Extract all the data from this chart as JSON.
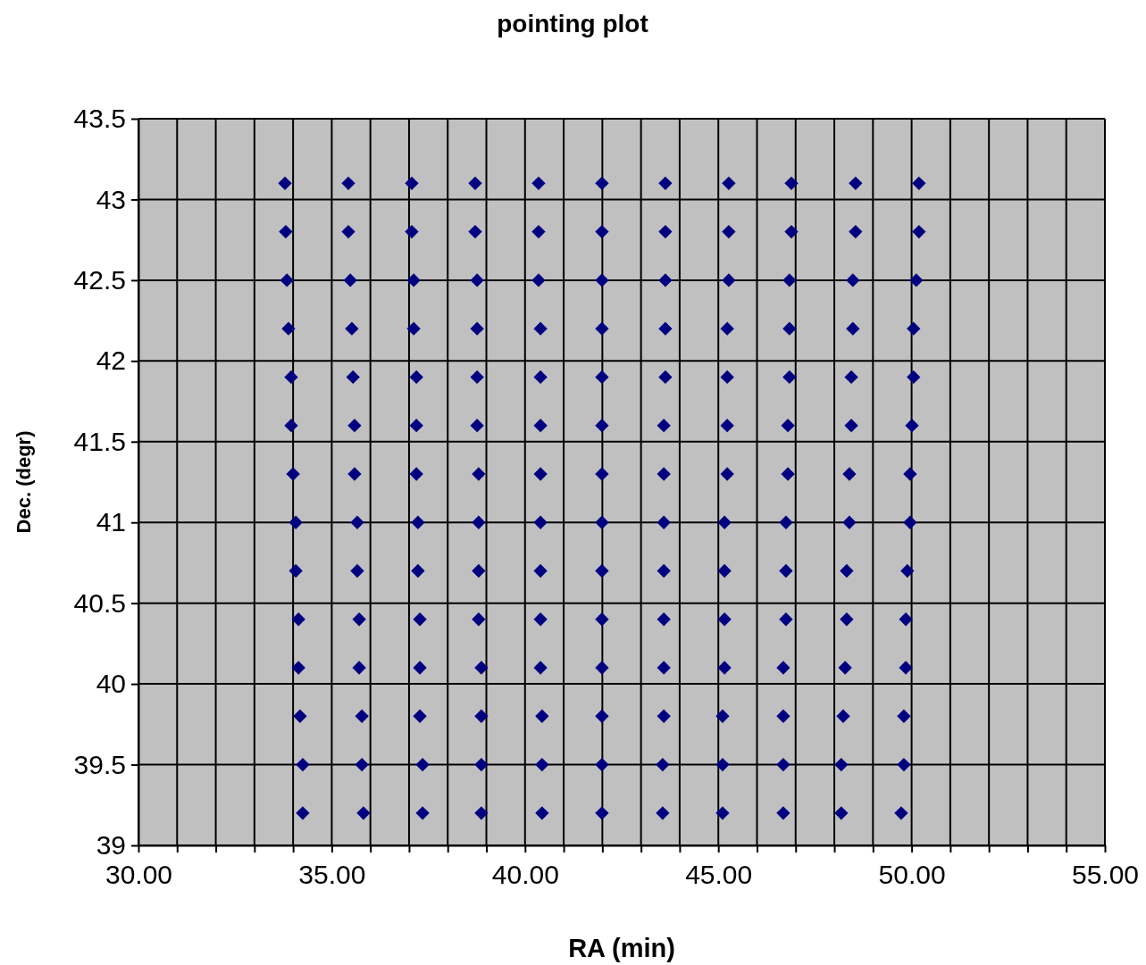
{
  "chart_data": {
    "type": "scatter",
    "title": "pointing plot",
    "xlabel": "RA (min)",
    "ylabel": "Dec. (degr)",
    "xlim": [
      30,
      55
    ],
    "ylim": [
      39,
      43.5
    ],
    "xticks": [
      {
        "value": 30,
        "label": "30.00"
      },
      {
        "value": 31,
        "label": null
      },
      {
        "value": 32,
        "label": null
      },
      {
        "value": 33,
        "label": null
      },
      {
        "value": 34,
        "label": null
      },
      {
        "value": 35,
        "label": "35.00"
      },
      {
        "value": 36,
        "label": null
      },
      {
        "value": 37,
        "label": null
      },
      {
        "value": 38,
        "label": null
      },
      {
        "value": 39,
        "label": null
      },
      {
        "value": 40,
        "label": "40.00"
      },
      {
        "value": 41,
        "label": null
      },
      {
        "value": 42,
        "label": null
      },
      {
        "value": 43,
        "label": null
      },
      {
        "value": 44,
        "label": null
      },
      {
        "value": 45,
        "label": "45.00"
      },
      {
        "value": 46,
        "label": null
      },
      {
        "value": 47,
        "label": null
      },
      {
        "value": 48,
        "label": null
      },
      {
        "value": 49,
        "label": null
      },
      {
        "value": 50,
        "label": "50.00"
      },
      {
        "value": 51,
        "label": null
      },
      {
        "value": 52,
        "label": null
      },
      {
        "value": 53,
        "label": null
      },
      {
        "value": 54,
        "label": null
      },
      {
        "value": 55,
        "label": "55.00"
      }
    ],
    "yticks": [
      39,
      39.5,
      40,
      40.5,
      41,
      41.5,
      42,
      42.5,
      43,
      43.5
    ],
    "grid": true,
    "marker": "diamond",
    "series": [
      {
        "color": "#000080",
        "x": [
          33.79,
          35.43,
          37.07,
          38.71,
          40.35,
          41.99,
          43.63,
          45.27,
          46.89,
          48.55,
          50.19,
          33.81,
          35.43,
          37.07,
          38.71,
          40.35,
          41.99,
          43.63,
          45.27,
          46.89,
          48.55,
          50.19,
          33.84,
          35.48,
          37.12,
          38.76,
          40.35,
          41.99,
          43.63,
          45.27,
          46.84,
          48.48,
          50.12,
          33.88,
          35.52,
          37.12,
          38.76,
          40.4,
          41.99,
          43.63,
          45.23,
          46.84,
          48.48,
          50.05,
          33.95,
          35.55,
          37.19,
          38.76,
          40.4,
          41.99,
          43.63,
          45.23,
          46.84,
          48.44,
          50.05,
          33.95,
          35.59,
          37.19,
          38.76,
          40.4,
          41.99,
          43.59,
          45.23,
          46.8,
          48.44,
          50.01,
          34.0,
          35.59,
          37.19,
          38.8,
          40.4,
          41.99,
          43.59,
          45.23,
          46.8,
          48.39,
          49.96,
          34.07,
          35.66,
          37.23,
          38.8,
          40.4,
          41.99,
          43.59,
          45.16,
          46.75,
          48.39,
          49.96,
          34.07,
          35.66,
          37.23,
          38.8,
          40.4,
          41.99,
          43.59,
          45.16,
          46.75,
          48.32,
          49.89,
          34.14,
          35.71,
          37.28,
          38.8,
          40.4,
          41.99,
          43.59,
          45.16,
          46.75,
          48.32,
          49.85,
          34.14,
          35.71,
          37.28,
          38.87,
          40.4,
          41.99,
          43.59,
          45.16,
          46.68,
          48.28,
          49.85,
          34.18,
          35.78,
          37.28,
          38.87,
          40.44,
          41.99,
          43.59,
          45.11,
          46.68,
          48.23,
          49.8,
          34.25,
          35.78,
          37.35,
          38.87,
          40.44,
          41.99,
          43.56,
          45.11,
          46.68,
          48.18,
          49.8,
          34.25,
          35.82,
          37.35,
          38.87,
          40.44,
          41.99,
          43.56,
          45.11,
          46.68,
          48.18,
          49.73
        ],
        "values": [
          43.1,
          43.1,
          43.1,
          43.1,
          43.1,
          43.1,
          43.1,
          43.1,
          43.1,
          43.1,
          43.1,
          42.8,
          42.8,
          42.8,
          42.8,
          42.8,
          42.8,
          42.8,
          42.8,
          42.8,
          42.8,
          42.8,
          42.5,
          42.5,
          42.5,
          42.5,
          42.5,
          42.5,
          42.5,
          42.5,
          42.5,
          42.5,
          42.5,
          42.2,
          42.2,
          42.2,
          42.2,
          42.2,
          42.2,
          42.2,
          42.2,
          42.2,
          42.2,
          42.2,
          41.9,
          41.9,
          41.9,
          41.9,
          41.9,
          41.9,
          41.9,
          41.9,
          41.9,
          41.9,
          41.9,
          41.6,
          41.6,
          41.6,
          41.6,
          41.6,
          41.6,
          41.6,
          41.6,
          41.6,
          41.6,
          41.6,
          41.3,
          41.3,
          41.3,
          41.3,
          41.3,
          41.3,
          41.3,
          41.3,
          41.3,
          41.3,
          41.3,
          41.0,
          41.0,
          41.0,
          41.0,
          41.0,
          41.0,
          41.0,
          41.0,
          41.0,
          41.0,
          41.0,
          40.7,
          40.7,
          40.7,
          40.7,
          40.7,
          40.7,
          40.7,
          40.7,
          40.7,
          40.7,
          40.7,
          40.4,
          40.4,
          40.4,
          40.4,
          40.4,
          40.4,
          40.4,
          40.4,
          40.4,
          40.4,
          40.4,
          40.1,
          40.1,
          40.1,
          40.1,
          40.1,
          40.1,
          40.1,
          40.1,
          40.1,
          40.1,
          40.1,
          39.8,
          39.8,
          39.8,
          39.8,
          39.8,
          39.8,
          39.8,
          39.8,
          39.8,
          39.8,
          39.8,
          39.5,
          39.5,
          39.5,
          39.5,
          39.5,
          39.5,
          39.5,
          39.5,
          39.5,
          39.5,
          39.5,
          39.2,
          39.2,
          39.2,
          39.2,
          39.2,
          39.2,
          39.2,
          39.2,
          39.2,
          39.2,
          39.2
        ]
      }
    ]
  }
}
